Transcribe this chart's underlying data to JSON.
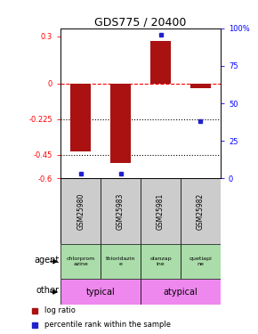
{
  "title": "GDS775 / 20400",
  "samples": [
    "GSM25980",
    "GSM25983",
    "GSM25981",
    "GSM25982"
  ],
  "log_ratios": [
    -0.43,
    -0.5,
    0.27,
    -0.03
  ],
  "percentile_ranks": [
    3,
    3,
    96,
    38
  ],
  "agents": [
    "chlorprom\nazine",
    "thioridazin\ne",
    "olanzap\nine",
    "quetiapi\nne"
  ],
  "other_groups": [
    [
      "typical",
      0,
      2
    ],
    [
      "atypical",
      2,
      2
    ]
  ],
  "other_color": "#ee88ee",
  "agent_color": "#aaddaa",
  "bar_color": "#aa1111",
  "dot_color": "#2222cc",
  "ylim_left": [
    -0.6,
    0.35
  ],
  "ylim_right": [
    0,
    100
  ],
  "yticks_left": [
    0.3,
    0,
    -0.225,
    -0.45,
    -0.6
  ],
  "yticks_right": [
    100,
    75,
    50,
    25,
    0
  ],
  "ytick_labels_left": [
    "0.3",
    "0",
    "-0.225",
    "-0.45",
    "-0.6"
  ],
  "ytick_labels_right": [
    "100%",
    "75",
    "50",
    "25",
    "0"
  ],
  "dotted_lines": [
    -0.225,
    -0.45
  ],
  "legend_items": [
    "log ratio",
    "percentile rank within the sample"
  ],
  "legend_colors": [
    "#aa1111",
    "#2222cc"
  ],
  "bg_color": "#ffffff",
  "sample_bg": "#cccccc"
}
